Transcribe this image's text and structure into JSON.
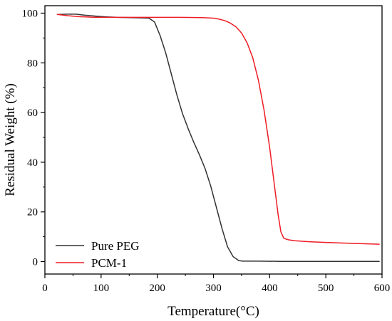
{
  "chart_data": {
    "type": "line",
    "title": "",
    "xlabel": "Temperature(°C)",
    "ylabel": "Residual Weight (%)",
    "xlim": [
      0,
      600
    ],
    "ylim": [
      -5,
      103
    ],
    "xticks": [
      0,
      100,
      200,
      300,
      400,
      500,
      600
    ],
    "yticks": [
      0,
      20,
      40,
      60,
      80,
      100
    ],
    "xtick_labels": [
      "0",
      "100",
      "200",
      "300",
      "400",
      "500",
      "600"
    ],
    "ytick_labels": [
      "0",
      "20",
      "40",
      "60",
      "80",
      "100"
    ],
    "grid": false,
    "legend_position": "bottom-left",
    "series": [
      {
        "name": "Pure PEG",
        "color": "#333333",
        "x": [
          25,
          40,
          55,
          70,
          90,
          110,
          130,
          150,
          170,
          185,
          195,
          205,
          215,
          225,
          235,
          245,
          255,
          265,
          275,
          285,
          295,
          305,
          315,
          325,
          335,
          345,
          352,
          360,
          380,
          420,
          500,
          595
        ],
        "y": [
          99.5,
          99.6,
          99.6,
          99.2,
          98.8,
          98.5,
          98.3,
          98.2,
          98.1,
          98.0,
          96.5,
          91,
          84,
          75.5,
          67,
          59.5,
          53.5,
          48,
          43,
          37.5,
          30.5,
          22,
          13.5,
          6,
          2,
          0.4,
          0.2,
          0.2,
          0.2,
          0.1,
          0.1,
          0.1
        ]
      },
      {
        "name": "PCM-1",
        "color": "#ee1c25",
        "x": [
          22,
          40,
          60,
          80,
          100,
          130,
          160,
          200,
          240,
          280,
          300,
          310,
          320,
          330,
          340,
          350,
          360,
          370,
          380,
          390,
          400,
          405,
          410,
          415,
          420,
          425,
          430,
          435,
          445,
          470,
          500,
          550,
          595
        ],
        "y": [
          99.5,
          99.0,
          98.6,
          98.4,
          98.3,
          98.3,
          98.3,
          98.3,
          98.3,
          98.2,
          98.0,
          97.6,
          97.0,
          96.0,
          94.5,
          92.0,
          88.0,
          82.0,
          73.0,
          61.0,
          46.0,
          37.0,
          28.0,
          19.0,
          12.0,
          9.5,
          9.0,
          8.7,
          8.4,
          8.0,
          7.7,
          7.3,
          7.0
        ]
      }
    ]
  }
}
